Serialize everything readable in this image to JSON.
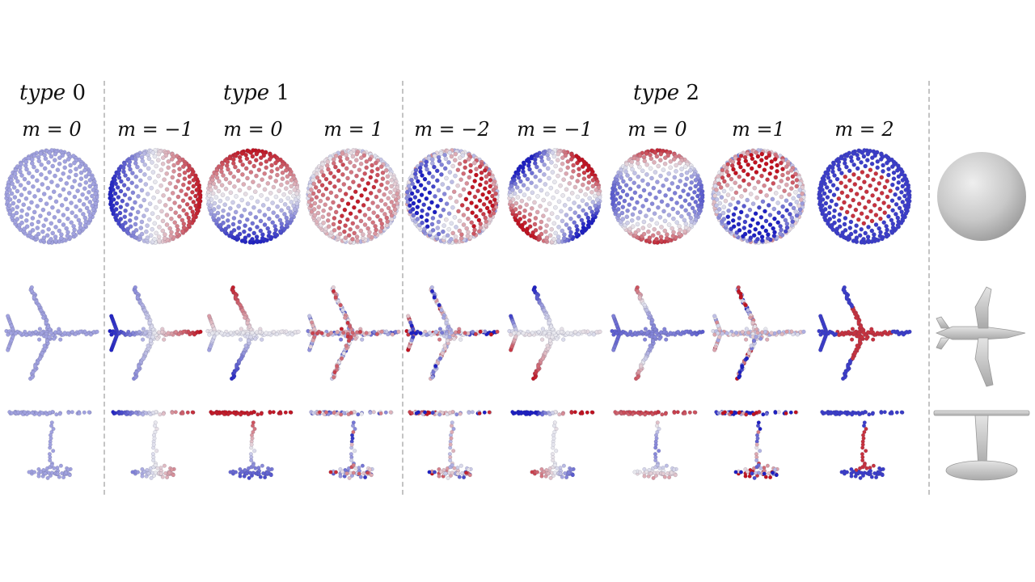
{
  "headers": {
    "type0": {
      "label": "type",
      "num": "0"
    },
    "type1": {
      "label": "type",
      "num": "1"
    },
    "type2": {
      "label": "type",
      "num": "2"
    }
  },
  "columns": [
    {
      "m": "m = 0",
      "type": 0,
      "pattern": "const"
    },
    {
      "m": "m = −1",
      "type": 1,
      "pattern": "x"
    },
    {
      "m": "m = 0",
      "type": 1,
      "pattern": "y"
    },
    {
      "m": "m = 1",
      "type": 1,
      "pattern": "z"
    },
    {
      "m": "m = −2",
      "type": 2,
      "pattern": "xz"
    },
    {
      "m": "m = −1",
      "type": 2,
      "pattern": "xy"
    },
    {
      "m": "m = 0",
      "type": 2,
      "pattern": "y2"
    },
    {
      "m": "m =1",
      "type": 2,
      "pattern": "yz"
    },
    {
      "m": "m = 2",
      "type": 2,
      "pattern": "z2"
    }
  ],
  "rows": [
    "sphere",
    "airplane",
    "table"
  ],
  "colors": {
    "positive": "#c1121f",
    "negative": "#1d1fc2",
    "neutral": "#e8e8ee",
    "reference_fill": "#c9c9c9",
    "separator": "#c4c4c4"
  }
}
